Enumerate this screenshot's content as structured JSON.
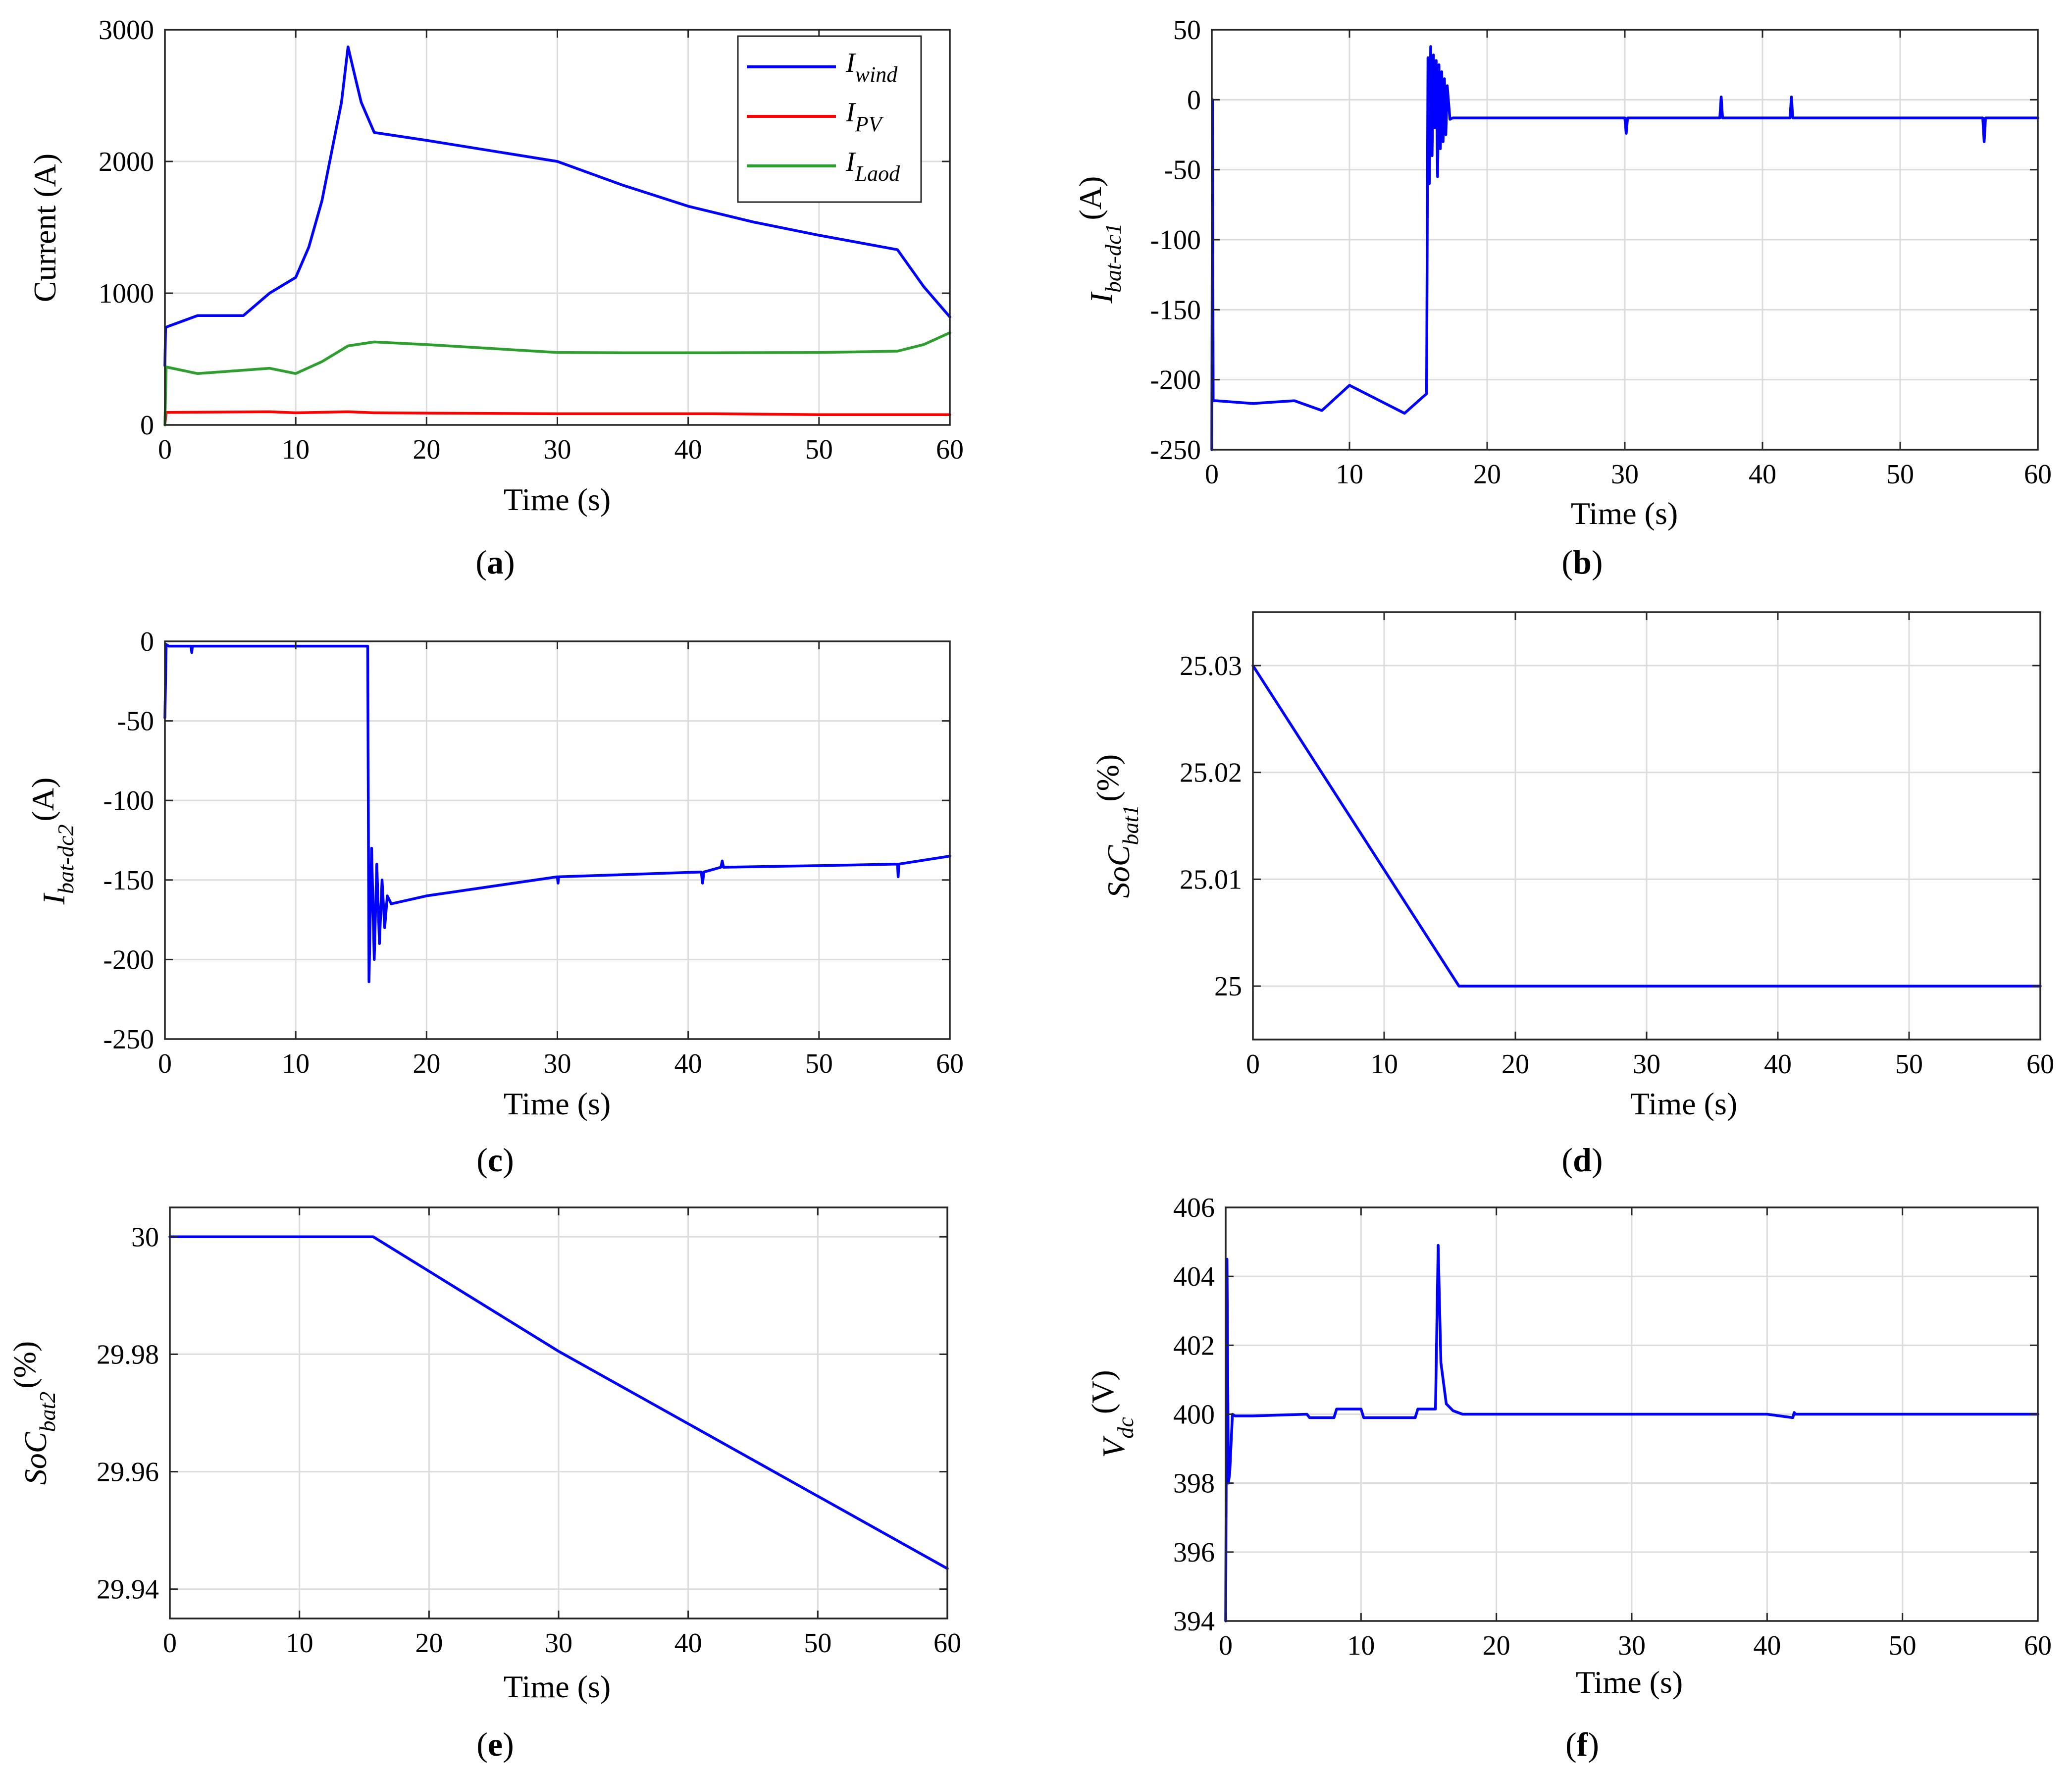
{
  "figure": {
    "colors": {
      "blue": "#0000ff",
      "red": "#ff0000",
      "green": "#2e9e2e",
      "axis": "#262626",
      "grid": "#dcdcdc"
    }
  },
  "chart_data": [
    {
      "id": "a",
      "type": "line",
      "caption": "a",
      "title": "",
      "xlabel": "Time (s)",
      "ylabel": "Current (A)",
      "xlim": [
        0,
        60
      ],
      "ylim": [
        0,
        3000
      ],
      "xticks": [
        0,
        10,
        20,
        30,
        40,
        50,
        60
      ],
      "xtick_labels": [
        "0",
        "10",
        "20",
        "30",
        "40",
        "50",
        "60"
      ],
      "yticks": [
        0,
        1000,
        2000,
        3000
      ],
      "ytick_labels": [
        "0",
        "1000",
        "2000",
        "3000"
      ],
      "grid": true,
      "legend": {
        "position": "top-right",
        "entries": [
          {
            "base": "I",
            "sub": "wind",
            "color": "#0000ff"
          },
          {
            "base": "I",
            "sub": "PV",
            "color": "#ff0000"
          },
          {
            "base": "I",
            "sub": "Laod",
            "color": "#2e9e2e"
          }
        ]
      },
      "series": [
        {
          "name": "I_wind",
          "color": "#0000ff",
          "x": [
            0,
            0.05,
            0.3,
            2.5,
            6,
            8,
            10,
            11,
            12,
            12.8,
            13.5,
            14,
            14.4,
            15,
            16,
            20,
            30,
            35,
            40,
            45,
            50,
            56,
            58,
            60
          ],
          "y": [
            450,
            740,
            750,
            830,
            830,
            1000,
            1120,
            1350,
            1700,
            2100,
            2450,
            2870,
            2700,
            2450,
            2220,
            2160,
            2000,
            1820,
            1660,
            1540,
            1440,
            1330,
            1050,
            820
          ]
        },
        {
          "name": "I_PV",
          "color": "#ff0000",
          "x": [
            0,
            0.1,
            8,
            10,
            14,
            16,
            20,
            30,
            42,
            50,
            60
          ],
          "y": [
            0,
            95,
            100,
            92,
            100,
            92,
            90,
            85,
            85,
            78,
            78
          ]
        },
        {
          "name": "I_Laod",
          "color": "#2e9e2e",
          "x": [
            0,
            0.1,
            2.5,
            8,
            10,
            12,
            14,
            16,
            20,
            30,
            35,
            42,
            50,
            56,
            58,
            60
          ],
          "y": [
            0,
            440,
            390,
            430,
            390,
            480,
            600,
            630,
            610,
            550,
            548,
            548,
            550,
            560,
            610,
            700
          ]
        }
      ]
    },
    {
      "id": "b",
      "type": "line",
      "caption": "b",
      "title": "",
      "xlabel": "Time (s)",
      "ylabel": {
        "base": "I",
        "sub": "bat-dc1",
        "unit": "(A)"
      },
      "xlim": [
        0,
        60
      ],
      "ylim": [
        -250,
        50
      ],
      "xticks": [
        0,
        10,
        20,
        30,
        40,
        50,
        60
      ],
      "xtick_labels": [
        "0",
        "10",
        "20",
        "30",
        "40",
        "50",
        "60"
      ],
      "yticks": [
        -250,
        -200,
        -150,
        -100,
        -50,
        0,
        50
      ],
      "ytick_labels": [
        "-250",
        "-200",
        "-150",
        "-100",
        "-50",
        "0",
        "50"
      ],
      "grid": true,
      "series": [
        {
          "name": "I_bat-dc1",
          "color": "#0000ff",
          "x": [
            0,
            0.05,
            0.1,
            0.3,
            3,
            6,
            8,
            10,
            14,
            15.6,
            15.7,
            15.8,
            15.9,
            16.0,
            16.1,
            16.2,
            16.3,
            16.4,
            16.5,
            16.6,
            16.7,
            16.8,
            16.9,
            17.0,
            17.1,
            17.3,
            17.5,
            30,
            30.1,
            30.2,
            36.9,
            37.0,
            37.1,
            42,
            42.1,
            42.2,
            56,
            56.1,
            56.2,
            60
          ],
          "y": [
            -250,
            0,
            -215,
            -215,
            -217,
            -215,
            -222,
            -204,
            -224,
            -210,
            30,
            -60,
            38,
            -40,
            32,
            -20,
            28,
            -55,
            25,
            -35,
            20,
            -30,
            15,
            -25,
            10,
            -14,
            -13,
            -13,
            -24,
            -13,
            -13,
            2,
            -13,
            -13,
            2,
            -13,
            -13,
            -30,
            -13,
            -13
          ]
        }
      ]
    },
    {
      "id": "c",
      "type": "line",
      "caption": "c",
      "title": "",
      "xlabel": "Time (s)",
      "ylabel": {
        "base": "I",
        "sub": "bat-dc2",
        "unit": "(A)"
      },
      "xlim": [
        0,
        60
      ],
      "ylim": [
        -250,
        0
      ],
      "xticks": [
        0,
        10,
        20,
        30,
        40,
        50,
        60
      ],
      "xtick_labels": [
        "0",
        "10",
        "20",
        "30",
        "40",
        "50",
        "60"
      ],
      "yticks": [
        -250,
        -200,
        -150,
        -100,
        -50,
        0
      ],
      "ytick_labels": [
        "-250",
        "-200",
        "-150",
        "-100",
        "-50",
        "0"
      ],
      "grid": true,
      "series": [
        {
          "name": "I_bat-dc2",
          "color": "#0000ff",
          "x": [
            0,
            0.1,
            0.3,
            2,
            2.05,
            2.1,
            15.5,
            15.6,
            15.8,
            16.0,
            16.2,
            16.4,
            16.6,
            16.8,
            17.0,
            17.3,
            20,
            25,
            30,
            30.05,
            30.1,
            41,
            41.1,
            41.2,
            42.5,
            42.6,
            42.7,
            50,
            56,
            56.05,
            56.1,
            60
          ],
          "y": [
            -48,
            -2,
            -3,
            -3,
            -7,
            -3,
            -3,
            -214,
            -130,
            -200,
            -140,
            -190,
            -150,
            -180,
            -160,
            -165,
            -160,
            -154,
            -148,
            -152,
            -148,
            -145,
            -152,
            -145,
            -142,
            -138,
            -142,
            -141,
            -140,
            -148,
            -140,
            -135
          ]
        }
      ]
    },
    {
      "id": "d",
      "type": "line",
      "caption": "d",
      "title": "",
      "xlabel": "Time (s)",
      "ylabel": {
        "base": "SoC",
        "sub": "bat1",
        "unit": "(%)"
      },
      "xlim": [
        0,
        60
      ],
      "ylim": [
        24.995,
        25.035
      ],
      "xticks": [
        0,
        10,
        20,
        30,
        40,
        50,
        60
      ],
      "xtick_labels": [
        "0",
        "10",
        "20",
        "30",
        "40",
        "50",
        "60"
      ],
      "yticks": [
        25,
        25.01,
        25.02,
        25.03
      ],
      "ytick_labels": [
        "25",
        "25.01",
        "25.02",
        "25.03"
      ],
      "grid": true,
      "series": [
        {
          "name": "SoC_bat1",
          "color": "#0000ff",
          "x": [
            0,
            15.7,
            60
          ],
          "y": [
            25.03,
            25.0,
            25.0
          ]
        }
      ]
    },
    {
      "id": "e",
      "type": "line",
      "caption": "e",
      "title": "",
      "xlabel": "Time (s)",
      "ylabel": {
        "base": "SoC",
        "sub": "bat2",
        "unit": "(%)"
      },
      "xlim": [
        0,
        60
      ],
      "ylim": [
        29.935,
        30.005
      ],
      "xticks": [
        0,
        10,
        20,
        30,
        40,
        50,
        60
      ],
      "xtick_labels": [
        "0",
        "10",
        "20",
        "30",
        "40",
        "50",
        "60"
      ],
      "yticks": [
        29.94,
        29.96,
        29.98,
        30
      ],
      "ytick_labels": [
        "29.94",
        "29.96",
        "29.98",
        "30"
      ],
      "grid": true,
      "series": [
        {
          "name": "SoC_bat2",
          "color": "#0000ff",
          "x": [
            0,
            15.7,
            30,
            60
          ],
          "y": [
            30.0,
            30.0,
            29.9805,
            29.9435
          ]
        }
      ]
    },
    {
      "id": "f",
      "type": "line",
      "caption": "f",
      "title": "",
      "xlabel": "Time (s)",
      "ylabel": {
        "base": "V",
        "sub": "dc",
        "unit": "(V)"
      },
      "xlim": [
        0,
        60
      ],
      "ylim": [
        394,
        406
      ],
      "xticks": [
        0,
        10,
        20,
        30,
        40,
        50,
        60
      ],
      "xtick_labels": [
        "0",
        "10",
        "20",
        "30",
        "40",
        "50",
        "60"
      ],
      "yticks": [
        394,
        396,
        398,
        400,
        402,
        404,
        406
      ],
      "ytick_labels": [
        "394",
        "396",
        "398",
        "400",
        "402",
        "404",
        "406"
      ],
      "grid": true,
      "series": [
        {
          "name": "V_dc",
          "color": "#0000ff",
          "x": [
            0,
            0.1,
            0.2,
            0.3,
            0.5,
            0.7,
            2,
            6,
            6.2,
            8,
            8.2,
            10,
            10.2,
            14,
            14.2,
            15.5,
            15.7,
            15.9,
            16.3,
            16.8,
            17.5,
            20,
            30,
            40,
            41.9,
            42,
            42.1,
            50,
            60
          ],
          "y": [
            394,
            404.5,
            398,
            398.3,
            400,
            399.95,
            399.95,
            400,
            399.9,
            399.9,
            400.15,
            400.15,
            399.9,
            399.9,
            400.15,
            400.15,
            404.9,
            401.5,
            400.3,
            400.1,
            400,
            400,
            400,
            400,
            399.9,
            400.05,
            400,
            400,
            400
          ]
        }
      ]
    }
  ]
}
